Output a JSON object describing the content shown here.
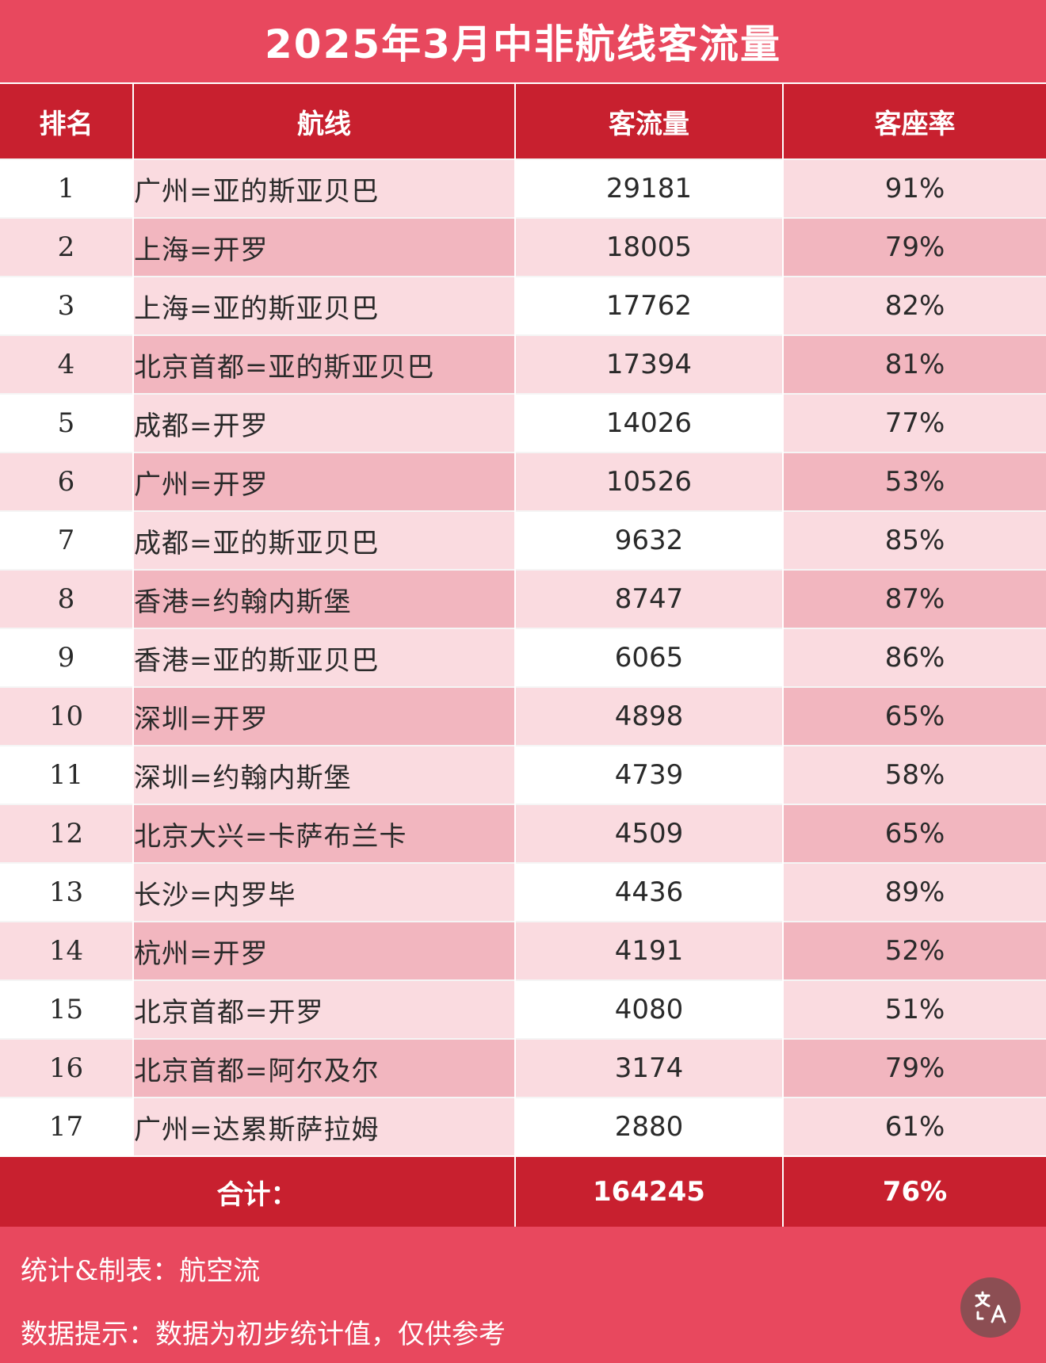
{
  "title": "2025年3月中非航线客流量",
  "table": {
    "headers": [
      "排名",
      "航线",
      "客流量",
      "客座率"
    ],
    "rows": [
      [
        "1",
        "广州=亚的斯亚贝巴",
        "29181",
        "91%"
      ],
      [
        "2",
        "上海=开罗",
        "18005",
        "79%"
      ],
      [
        "3",
        "上海=亚的斯亚贝巴",
        "17762",
        "82%"
      ],
      [
        "4",
        "北京首都=亚的斯亚贝巴",
        "17394",
        "81%"
      ],
      [
        "5",
        "成都=开罗",
        "14026",
        "77%"
      ],
      [
        "6",
        "广州=开罗",
        "10526",
        "53%"
      ],
      [
        "7",
        "成都=亚的斯亚贝巴",
        "9632",
        "85%"
      ],
      [
        "8",
        "香港=约翰内斯堡",
        "8747",
        "87%"
      ],
      [
        "9",
        "香港=亚的斯亚贝巴",
        "6065",
        "86%"
      ],
      [
        "10",
        "深圳=开罗",
        "4898",
        "65%"
      ],
      [
        "11",
        "深圳=约翰内斯堡",
        "4739",
        "58%"
      ],
      [
        "12",
        "北京大兴=卡萨布兰卡",
        "4509",
        "65%"
      ],
      [
        "13",
        "长沙=内罗毕",
        "4436",
        "89%"
      ],
      [
        "14",
        "杭州=开罗",
        "4191",
        "52%"
      ],
      [
        "15",
        "北京首都=开罗",
        "4080",
        "51%"
      ],
      [
        "16",
        "北京首都=阿尔及尔",
        "3174",
        "79%"
      ],
      [
        "17",
        "广州=达累斯萨拉姆",
        "2880",
        "61%"
      ]
    ],
    "total": {
      "label": "合计：",
      "passengers": "164245",
      "load_factor": "76%"
    }
  },
  "chart_data": {
    "type": "table",
    "title": "2025年3月中非航线客流量",
    "columns": [
      "排名",
      "航线",
      "客流量",
      "客座率"
    ],
    "rows": [
      [
        1,
        "广州=亚的斯亚贝巴",
        29181,
        "91%"
      ],
      [
        2,
        "上海=开罗",
        18005,
        "79%"
      ],
      [
        3,
        "上海=亚的斯亚贝巴",
        17762,
        "82%"
      ],
      [
        4,
        "北京首都=亚的斯亚贝巴",
        17394,
        "81%"
      ],
      [
        5,
        "成都=开罗",
        14026,
        "77%"
      ],
      [
        6,
        "广州=开罗",
        10526,
        "53%"
      ],
      [
        7,
        "成都=亚的斯亚贝巴",
        9632,
        "85%"
      ],
      [
        8,
        "香港=约翰内斯堡",
        8747,
        "87%"
      ],
      [
        9,
        "香港=亚的斯亚贝巴",
        6065,
        "86%"
      ],
      [
        10,
        "深圳=开罗",
        4898,
        "65%"
      ],
      [
        11,
        "深圳=约翰内斯堡",
        4739,
        "58%"
      ],
      [
        12,
        "北京大兴=卡萨布兰卡",
        4509,
        "65%"
      ],
      [
        13,
        "长沙=内罗毕",
        4436,
        "89%"
      ],
      [
        14,
        "杭州=开罗",
        4191,
        "52%"
      ],
      [
        15,
        "北京首都=开罗",
        4080,
        "51%"
      ],
      [
        16,
        "北京首都=阿尔及尔",
        3174,
        "79%"
      ],
      [
        17,
        "广州=达累斯萨拉姆",
        2880,
        "61%"
      ]
    ],
    "total": [
      "合计：",
      164245,
      "76%"
    ]
  },
  "footer": {
    "source": "统计&制表：航空流",
    "note": "数据提示：数据为初步统计值，仅供参考"
  },
  "translate_button": {
    "icon": "translate-icon"
  },
  "colors": {
    "banner": "#e8485e",
    "header": "#c8202f",
    "row_light": "#fadbe0",
    "row_dark": "#f2b6bf",
    "white": "#ffffff"
  }
}
